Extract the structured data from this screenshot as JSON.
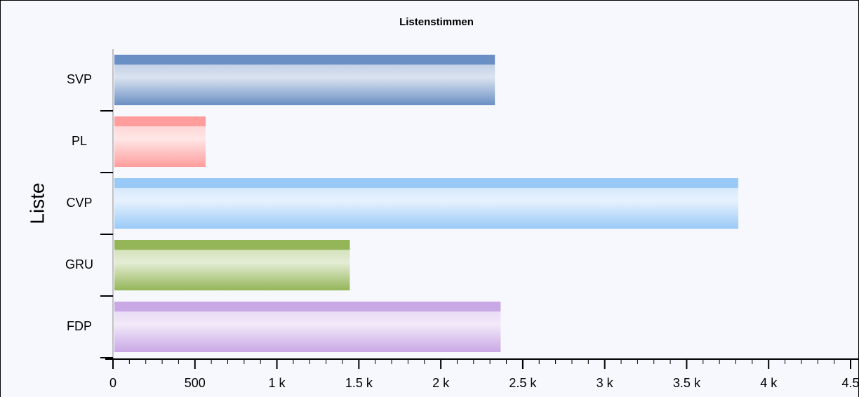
{
  "chart_data": {
    "type": "barh",
    "title": "Listenstimmen",
    "y_label": "Liste",
    "categories": [
      "SVP",
      "PL",
      "CVP",
      "GRU",
      "FDP"
    ],
    "values": [
      2330,
      565,
      3815,
      1445,
      2365
    ],
    "colors": [
      "#6a8fc4",
      "#ff9c9c",
      "#99c9f7",
      "#94b658",
      "#c9a8e6"
    ],
    "xlim": [
      0,
      4500
    ],
    "xticks": [
      0,
      500,
      {
        "value": 1000,
        "label": "1 k"
      },
      {
        "value": 1500,
        "label": "1.5 k"
      },
      {
        "value": 2000,
        "label": "2 k"
      },
      {
        "value": 2500,
        "label": "2.5 k"
      },
      {
        "value": 3000,
        "label": "3 k"
      },
      {
        "value": 3500,
        "label": "3.5 k"
      },
      {
        "value": 4000,
        "label": "4 k"
      },
      {
        "value": 4500,
        "label": "4.5"
      }
    ],
    "minor_step": 100
  }
}
